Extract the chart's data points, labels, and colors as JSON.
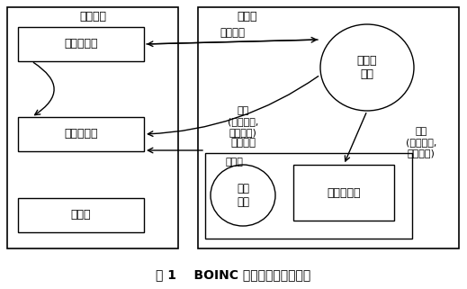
{
  "title": "图 1    BOINC 虚拟机作业的数据流",
  "server_label": "服务器端",
  "client_label": "客户端",
  "box_task_scheduler": "任务调度器",
  "box_data_transfer": "数据传输器",
  "box_verifier": "验证器",
  "box_client_program": "客户端\n程序",
  "box_vm": "虚拟机",
  "box_app": "应用\n程序",
  "box_shared_folder": "共享文件夹",
  "arrow_job_request": "作业请求",
  "arrow_job_left": "作业\n(应用程序,\n输入文件)",
  "arrow_job_result": "作业结果",
  "arrow_job_right": "作业\n(应用程序,\n输入文件)"
}
